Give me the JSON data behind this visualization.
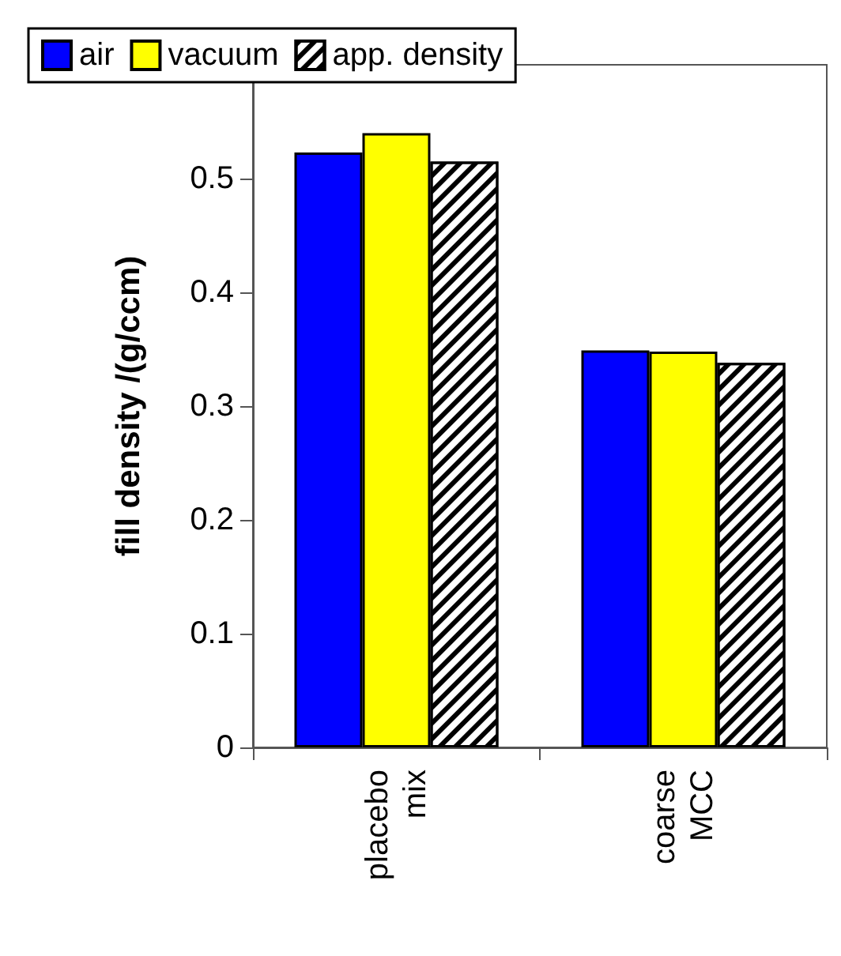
{
  "chart_data": {
    "type": "bar",
    "ylabel": "fill density /(g/ccm)",
    "categories": [
      "placebo mix",
      "coarse MCC"
    ],
    "series": [
      {
        "name": "air",
        "color": "#0000ff",
        "values": [
          0.523,
          0.349
        ]
      },
      {
        "name": "vacuum",
        "color": "#ffff00",
        "values": [
          0.54,
          0.348
        ]
      },
      {
        "name": "app. density",
        "color": "#ffffff",
        "values": [
          0.515,
          0.338
        ]
      }
    ],
    "ylim": [
      0,
      0.6
    ],
    "yticks": [
      0,
      0.1,
      0.2,
      0.3,
      0.4,
      0.5
    ],
    "grid": false,
    "legend": "top left"
  }
}
